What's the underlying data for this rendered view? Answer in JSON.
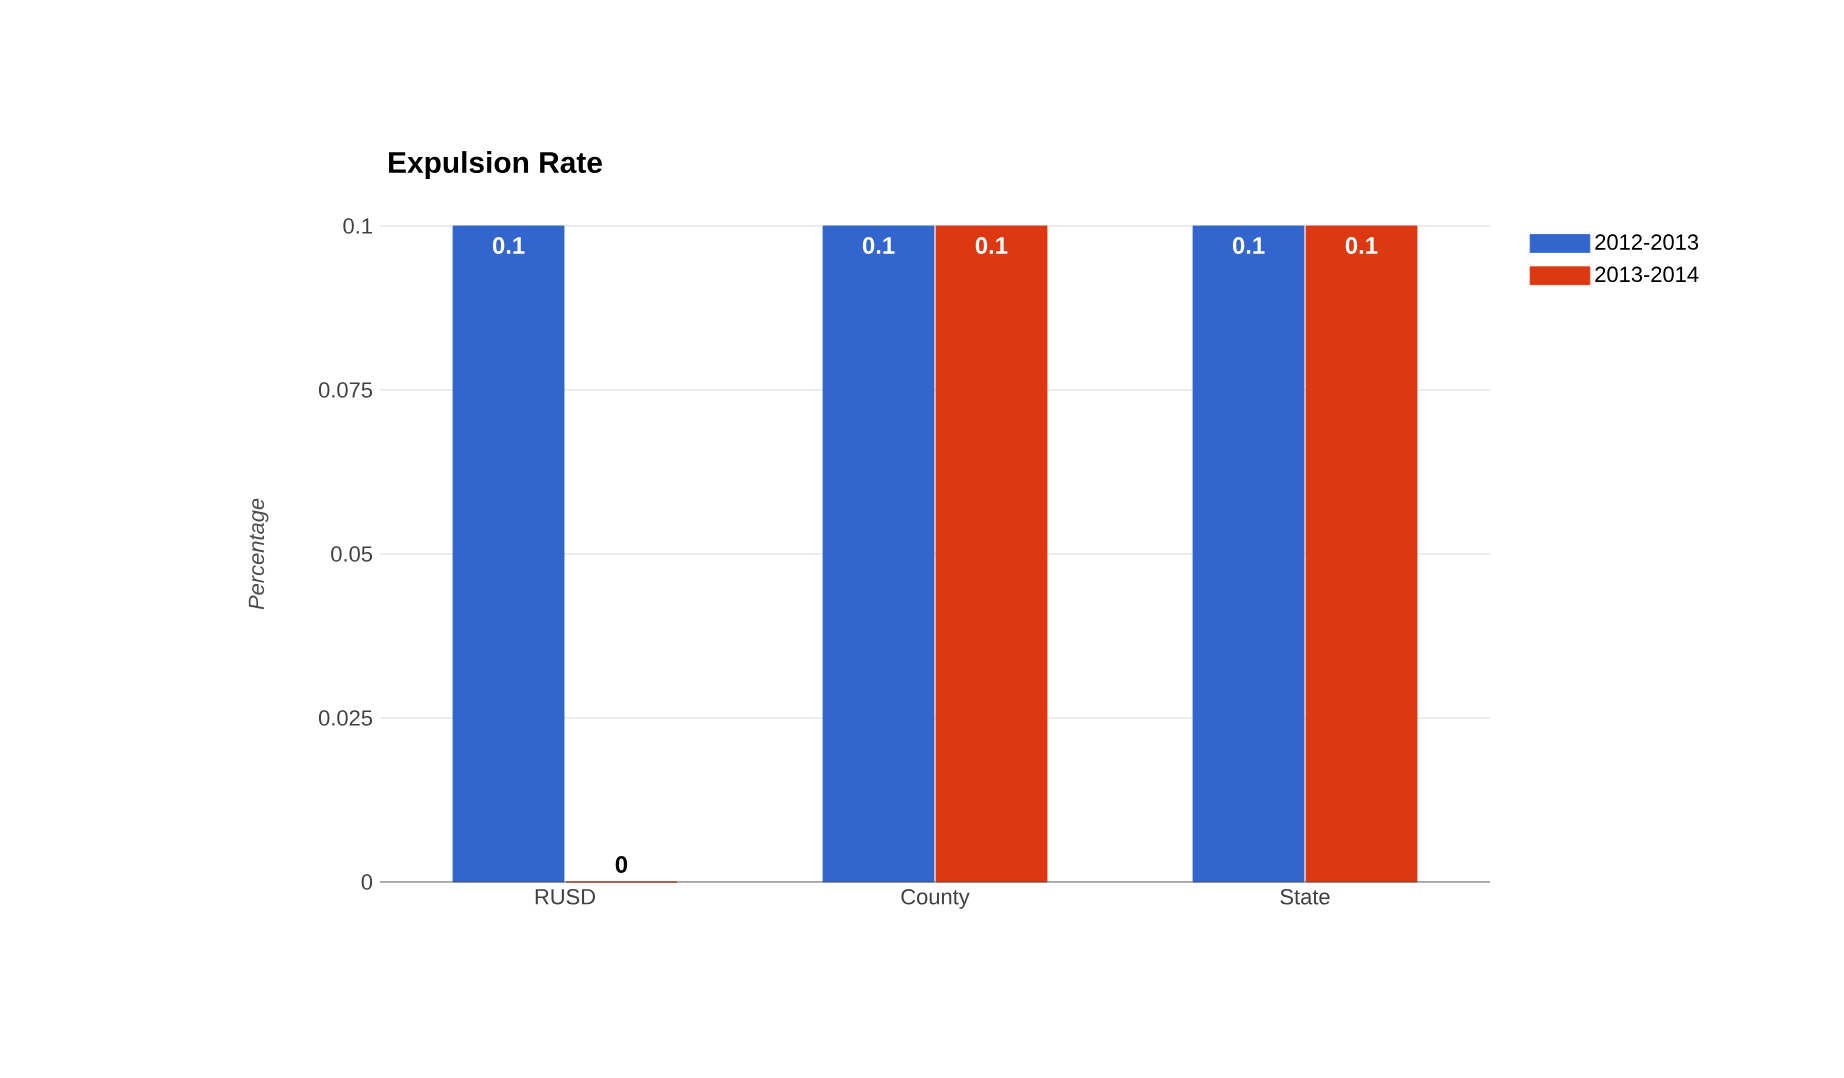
{
  "chart_data": {
    "type": "bar",
    "title": "Expulsion Rate",
    "ylabel": "Percentage",
    "categories": [
      "RUSD",
      "County",
      "State"
    ],
    "series": [
      {
        "name": "2012-2013",
        "color": "#3366cc",
        "values": [
          0.1,
          0.1,
          0.1
        ]
      },
      {
        "name": "2013-2014",
        "color": "#dc3912",
        "values": [
          0,
          0.1,
          0.1
        ]
      }
    ],
    "ylim": [
      0,
      0.1
    ],
    "yticks": [
      0,
      0.025,
      0.05,
      0.075,
      0.1
    ],
    "grid": "y",
    "legend": "top right",
    "data_labels": true
  }
}
